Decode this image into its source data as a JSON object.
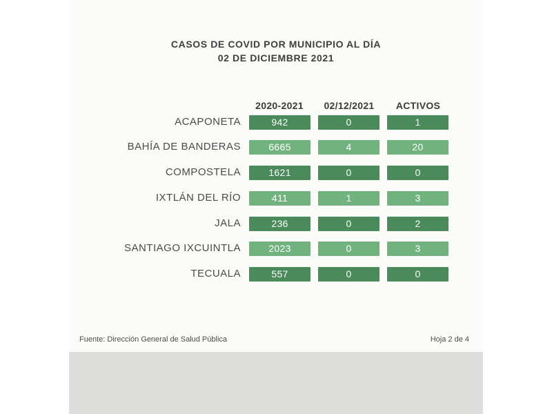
{
  "title": {
    "line1": "CASOS DE COVID POR MUNICIPIO AL DÍA",
    "line2": "02 DE DICIEMBRE 2021"
  },
  "columns": [
    "2020-2021",
    "02/12/2021",
    "ACTIVOS"
  ],
  "rows": [
    {
      "municipio": "ACAPONETA",
      "values": [
        "942",
        "0",
        "1"
      ]
    },
    {
      "municipio": "BAHÍA DE BANDERAS",
      "values": [
        "6665",
        "4",
        "20"
      ]
    },
    {
      "municipio": "COMPOSTELA",
      "values": [
        "1621",
        "0",
        "0"
      ]
    },
    {
      "municipio": "IXTLÁN DEL RÍO",
      "values": [
        "411",
        "1",
        "3"
      ]
    },
    {
      "municipio": "JALA",
      "values": [
        "236",
        "0",
        "2"
      ]
    },
    {
      "municipio": "SANTIAGO IXCUINTLA",
      "values": [
        "2023",
        "0",
        "3"
      ]
    },
    {
      "municipio": "TECUALA",
      "values": [
        "557",
        "0",
        "0"
      ]
    }
  ],
  "colors": {
    "dark_cell": "#4a8a5b",
    "light_cell": "#71b27f",
    "text": "#3e3e3e"
  },
  "footer": {
    "source": "Fuente: Dirección General de Salud Pública",
    "page": "Hoja 2 de 4"
  }
}
